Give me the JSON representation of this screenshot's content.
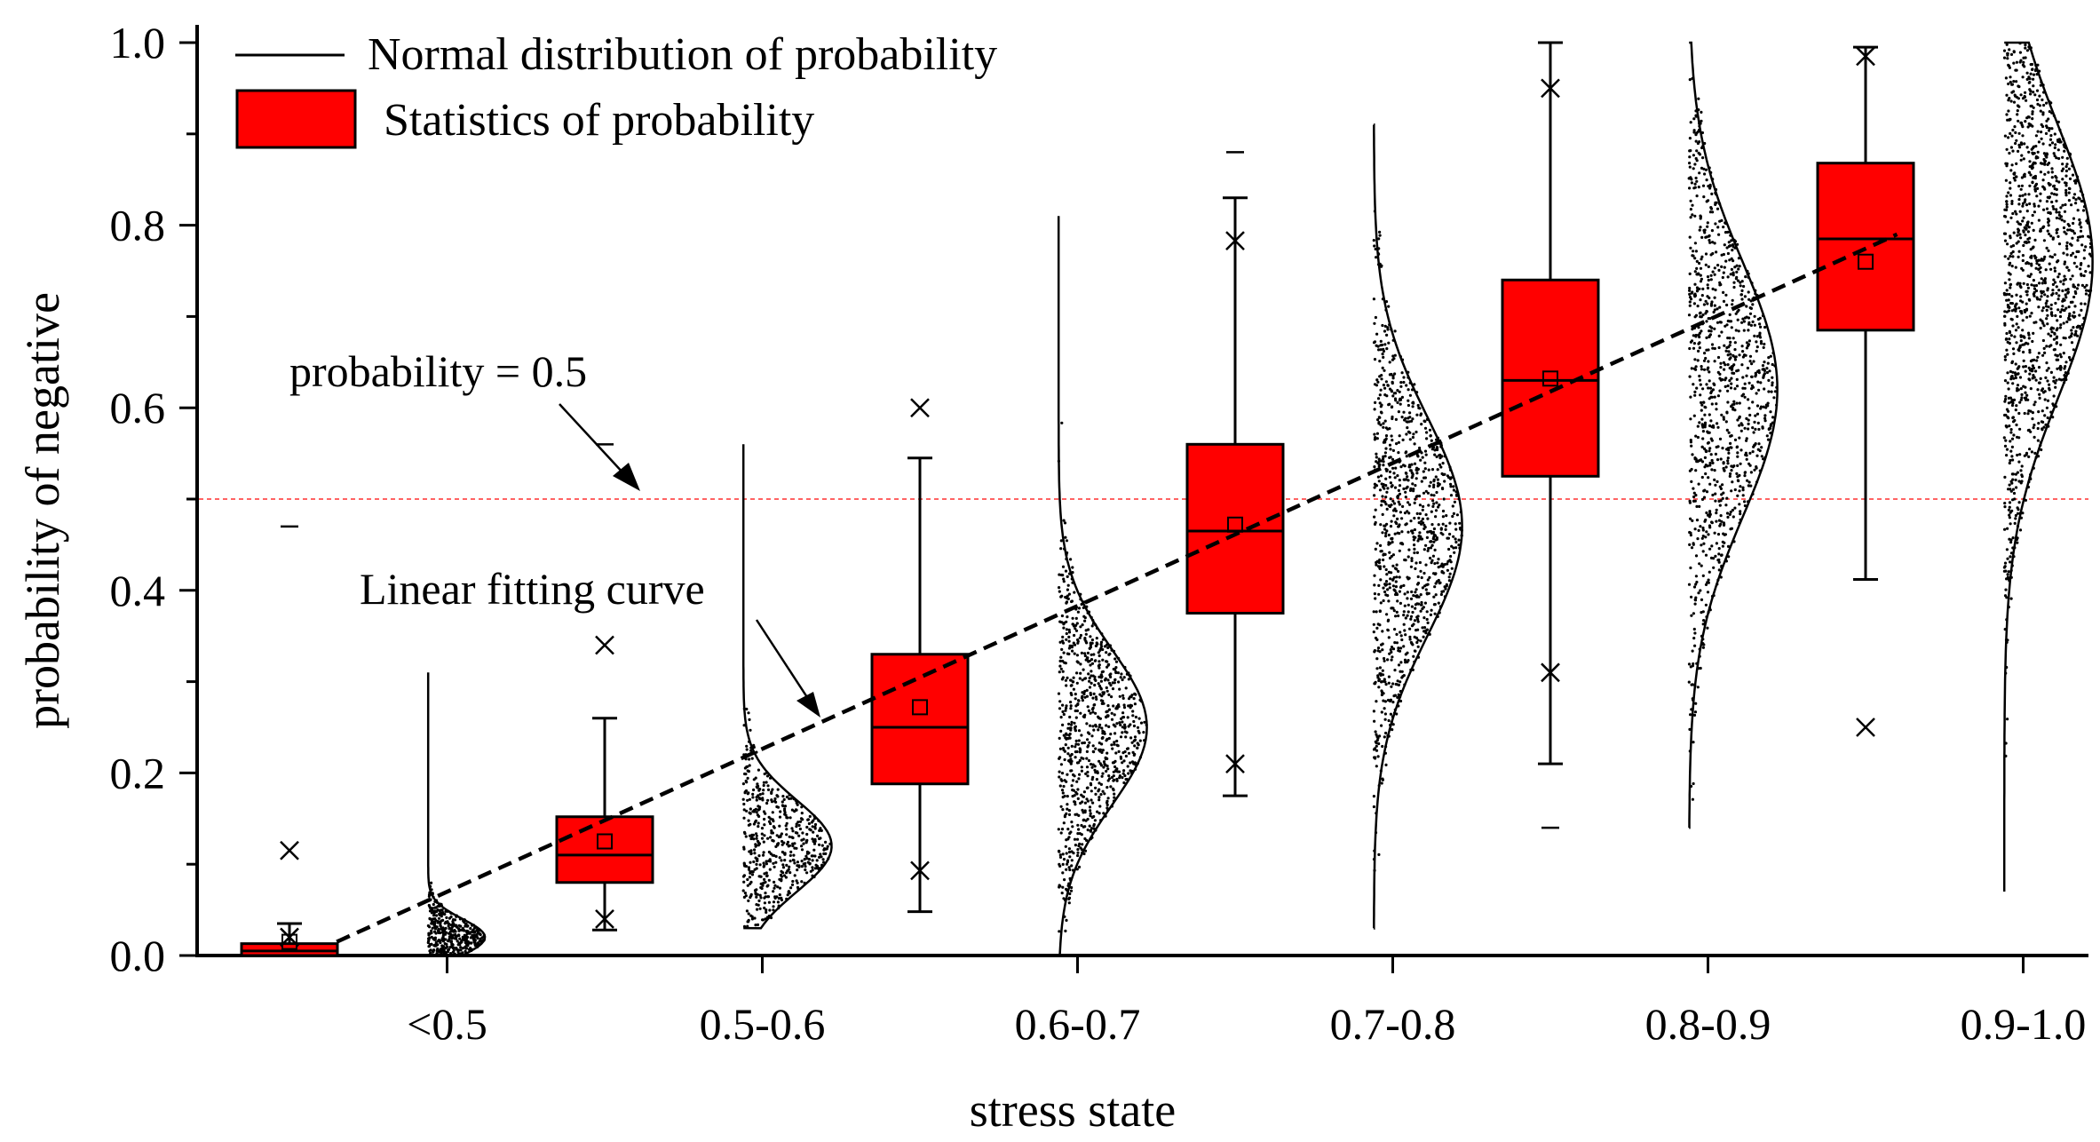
{
  "chart_data": {
    "type": "box_violin",
    "title": "",
    "xlabel": "stress state",
    "ylabel": "probability of  negative",
    "ylim": [
      0,
      1.0
    ],
    "yticks": [
      "0.0",
      "0.2",
      "0.4",
      "0.6",
      "0.8",
      "1.0"
    ],
    "categories": [
      "<0.5",
      "0.5-0.6",
      "0.6-0.7",
      "0.7-0.8",
      "0.8-0.9",
      "0.9-1.0"
    ],
    "legend": {
      "position": "top-left",
      "line_label": "Normal distribution of probability",
      "box_label": "Statistics of probability"
    },
    "box_color": "#ff0000",
    "reference_line": {
      "y": 0.5,
      "label": "probability  = 0.5",
      "color": "#ff4d4d"
    },
    "fit_label": "Linear fitting curve",
    "fit_line": {
      "x_start": 0.15,
      "y_start": 0.015,
      "x_end": 5.1,
      "y_end": 0.79
    },
    "boxes": [
      {
        "category": "<0.5",
        "q1": 0.0,
        "median": 0.005,
        "q3": 0.013,
        "mean": 0.015,
        "whisker_low": 0.0,
        "whisker_high": 0.035,
        "p1": 0.02,
        "p99": 0.115,
        "min": null,
        "max": 0.47
      },
      {
        "category": "0.5-0.6",
        "q1": 0.08,
        "median": 0.11,
        "q3": 0.152,
        "mean": 0.125,
        "whisker_low": 0.028,
        "whisker_high": 0.26,
        "p1": 0.04,
        "p99": 0.34,
        "min": null,
        "max": 0.56
      },
      {
        "category": "0.6-0.7",
        "q1": 0.188,
        "median": 0.25,
        "q3": 0.33,
        "mean": 0.272,
        "whisker_low": 0.048,
        "whisker_high": 0.545,
        "p1": 0.093,
        "p99": 0.6,
        "min": null,
        "max": null
      },
      {
        "category": "0.7-0.8",
        "q1": 0.375,
        "median": 0.465,
        "q3": 0.56,
        "mean": 0.472,
        "whisker_low": 0.175,
        "whisker_high": 0.83,
        "p1": 0.21,
        "p99": 0.783,
        "min": null,
        "max": 0.88
      },
      {
        "category": "0.8-0.9",
        "q1": 0.525,
        "median": 0.63,
        "q3": 0.74,
        "mean": 0.632,
        "whisker_low": 0.21,
        "whisker_high": 1.0,
        "p1": 0.31,
        "p99": 0.95,
        "min": 0.14,
        "max": null
      },
      {
        "category": "0.9-1.0",
        "q1": 0.685,
        "median": 0.785,
        "q3": 0.868,
        "mean": 0.76,
        "whisker_low": 0.412,
        "whisker_high": 0.995,
        "p1": 0.25,
        "p99": 0.985,
        "min": null,
        "max": null
      }
    ],
    "distributions": [
      {
        "category": "<0.5",
        "mu": 0.02,
        "sigma": 0.02,
        "lo": 0.0,
        "hi": 0.31,
        "n": 500,
        "scale": 0.18
      },
      {
        "category": "0.5-0.6",
        "mu": 0.12,
        "sigma": 0.05,
        "lo": 0.03,
        "hi": 0.56,
        "n": 550,
        "scale": 0.28
      },
      {
        "category": "0.6-0.7",
        "mu": 0.25,
        "sigma": 0.085,
        "lo": 0.0,
        "hi": 0.81,
        "n": 850,
        "scale": 0.28
      },
      {
        "category": "0.7-0.8",
        "mu": 0.47,
        "sigma": 0.12,
        "lo": 0.03,
        "hi": 0.91,
        "n": 1000,
        "scale": 0.28
      },
      {
        "category": "0.8-0.9",
        "mu": 0.62,
        "sigma": 0.14,
        "lo": 0.14,
        "hi": 1.0,
        "n": 1000,
        "scale": 0.28
      },
      {
        "category": "0.9-1.0",
        "mu": 0.76,
        "sigma": 0.15,
        "lo": 0.07,
        "hi": 1.0,
        "n": 1300,
        "scale": 0.28
      }
    ]
  }
}
